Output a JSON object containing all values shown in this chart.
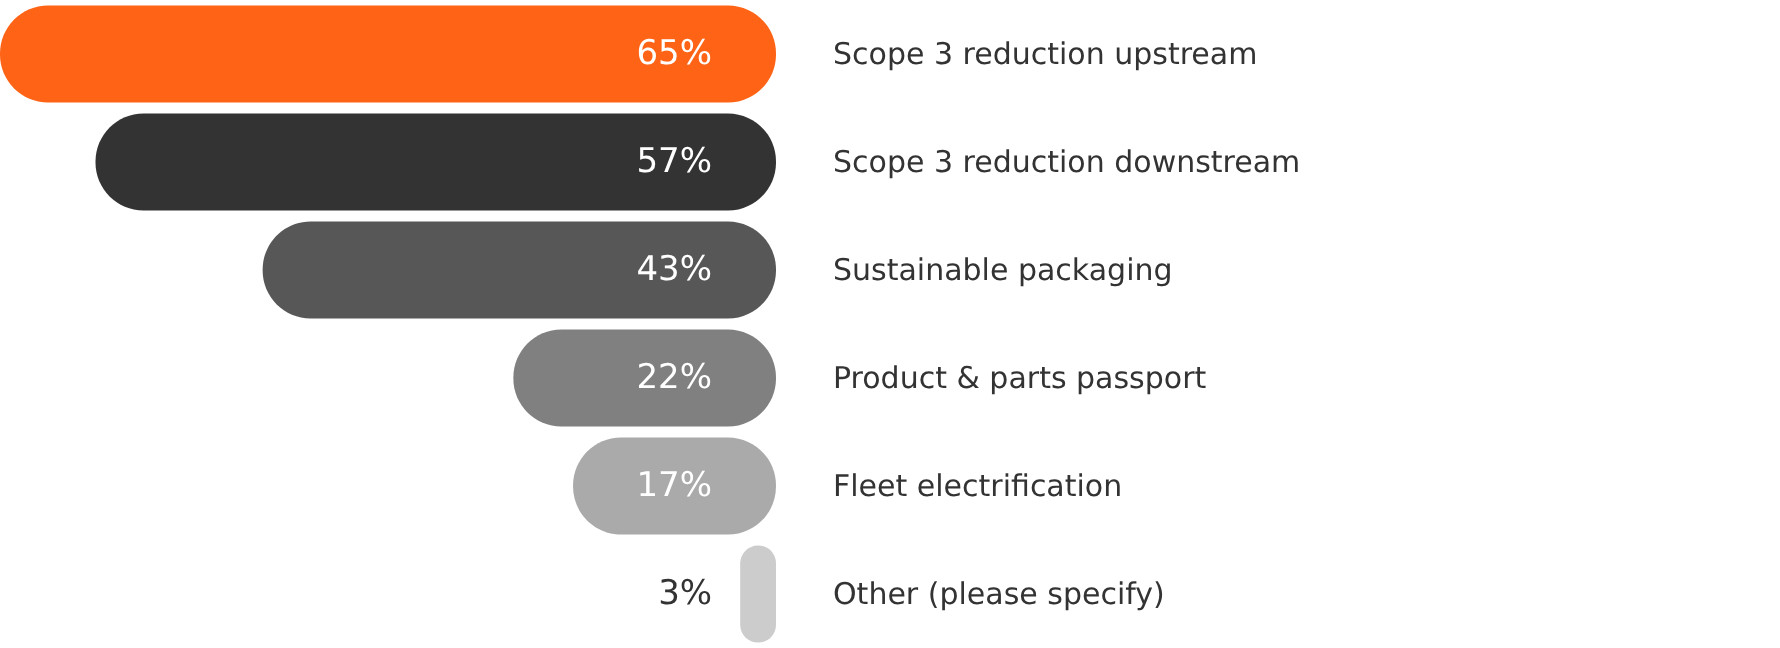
{
  "chart_data": {
    "type": "bar",
    "orientation": "horizontal",
    "value_labels": [
      "65%",
      "57%",
      "43%",
      "22%",
      "17%",
      "3%"
    ],
    "categories": [
      "Scope 3 reduction upstream",
      "Scope 3 reduction downstream",
      "Sustainable packaging",
      "Product & parts passport",
      "Fleet electrification",
      "Other (please specify)"
    ],
    "values": [
      65,
      57,
      43,
      22,
      17,
      3
    ],
    "colors": [
      "#ff6316",
      "#333333",
      "#575757",
      "#808080",
      "#aaaaaa",
      "#cccccc"
    ]
  }
}
